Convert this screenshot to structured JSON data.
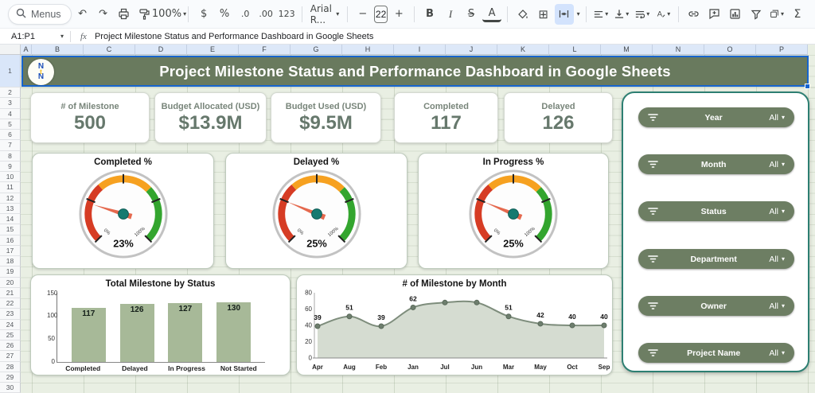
{
  "toolbar": {
    "menus": "Menus",
    "zoom": "100%",
    "currency": "$",
    "percent": "%",
    "decrease_decimals": ".0",
    "increase_decimals": ".00",
    "more_formats": "123",
    "font": "Arial R...",
    "font_size": "22",
    "minus": "−",
    "plus": "+",
    "bold": "B",
    "italic": "I",
    "strikethrough": "S",
    "text_color": "A",
    "functions": "Σ"
  },
  "formula_bar": {
    "name_box": "A1:P1",
    "fx": "fx",
    "formula": "Project Milestone Status and Performance Dashboard in Google Sheets"
  },
  "sheet": {
    "columns": [
      "A",
      "B",
      "C",
      "D",
      "E",
      "F",
      "G",
      "H",
      "I",
      "J",
      "K",
      "L",
      "M",
      "N",
      "O",
      "P"
    ],
    "row_first": 1,
    "row_last": 30,
    "selected_range": "A1:P1"
  },
  "banner": {
    "title": "Project Milestone Status and Performance Dashboard in Google Sheets",
    "logo_top": "N",
    "logo_mid": "t",
    "logo_bottom": "N"
  },
  "kpis": [
    {
      "label": "# of Milestone",
      "value": "500"
    },
    {
      "label": "Budget Allocated (USD)",
      "value": "$13.9M"
    },
    {
      "label": "Budget Used (USD)",
      "value": "$9.5M"
    },
    {
      "label": "Completed",
      "value": "117"
    },
    {
      "label": "Delayed",
      "value": "126"
    }
  ],
  "filters": {
    "items": [
      {
        "label": "Year",
        "value": "All"
      },
      {
        "label": "Month",
        "value": "All"
      },
      {
        "label": "Status",
        "value": "All"
      },
      {
        "label": "Department",
        "value": "All"
      },
      {
        "label": "Owner",
        "value": "All"
      },
      {
        "label": "Project Name",
        "value": "All"
      }
    ]
  },
  "colors": {
    "banner": "#697a5e",
    "pill": "#6d7e63",
    "bar_fill": "#a7b998",
    "panel_border": "#2d7f72",
    "gauge_red": "#d63c24",
    "gauge_orange": "#f6a120",
    "gauge_green": "#33a52e",
    "needle": "#e5694e",
    "hub": "#157a70",
    "line": "#7e8d7c",
    "area_fill": "#d0d8cc"
  },
  "chart_data": [
    {
      "type": "gauge",
      "title": "Completed %",
      "value_pct": 23,
      "display": "23%",
      "scale_min_label": "0%",
      "scale_max_label": "100%",
      "sweep_deg": 270
    },
    {
      "type": "gauge",
      "title": "Delayed %",
      "value_pct": 25,
      "display": "25%",
      "scale_min_label": "0%",
      "scale_max_label": "100%",
      "sweep_deg": 270
    },
    {
      "type": "gauge",
      "title": "In Progress %",
      "value_pct": 25,
      "display": "25%",
      "scale_min_label": "0%",
      "scale_max_label": "100%",
      "sweep_deg": 270
    },
    {
      "type": "bar",
      "title": "Total Milestone by Status",
      "categories": [
        "Completed",
        "Delayed",
        "In Progress",
        "Not Started"
      ],
      "values": [
        117,
        126,
        127,
        130
      ],
      "ylim": [
        0,
        150
      ],
      "yticks": [
        0,
        50,
        100,
        150
      ],
      "data_labels": true
    },
    {
      "type": "area",
      "title": "# of  Milestone by Month",
      "x": [
        "Apr",
        "Aug",
        "Feb",
        "Jan",
        "Jul",
        "Jun",
        "Mar",
        "May",
        "Oct",
        "Sep"
      ],
      "values": [
        39,
        51,
        39,
        62,
        68,
        68,
        51,
        42,
        40,
        40
      ],
      "point_labels": [
        "39",
        "51",
        "39",
        "62",
        "",
        "",
        "51",
        "42",
        "40",
        "40"
      ],
      "ylim": [
        0,
        80
      ],
      "yticks": [
        0,
        20,
        40,
        60,
        80
      ]
    }
  ]
}
